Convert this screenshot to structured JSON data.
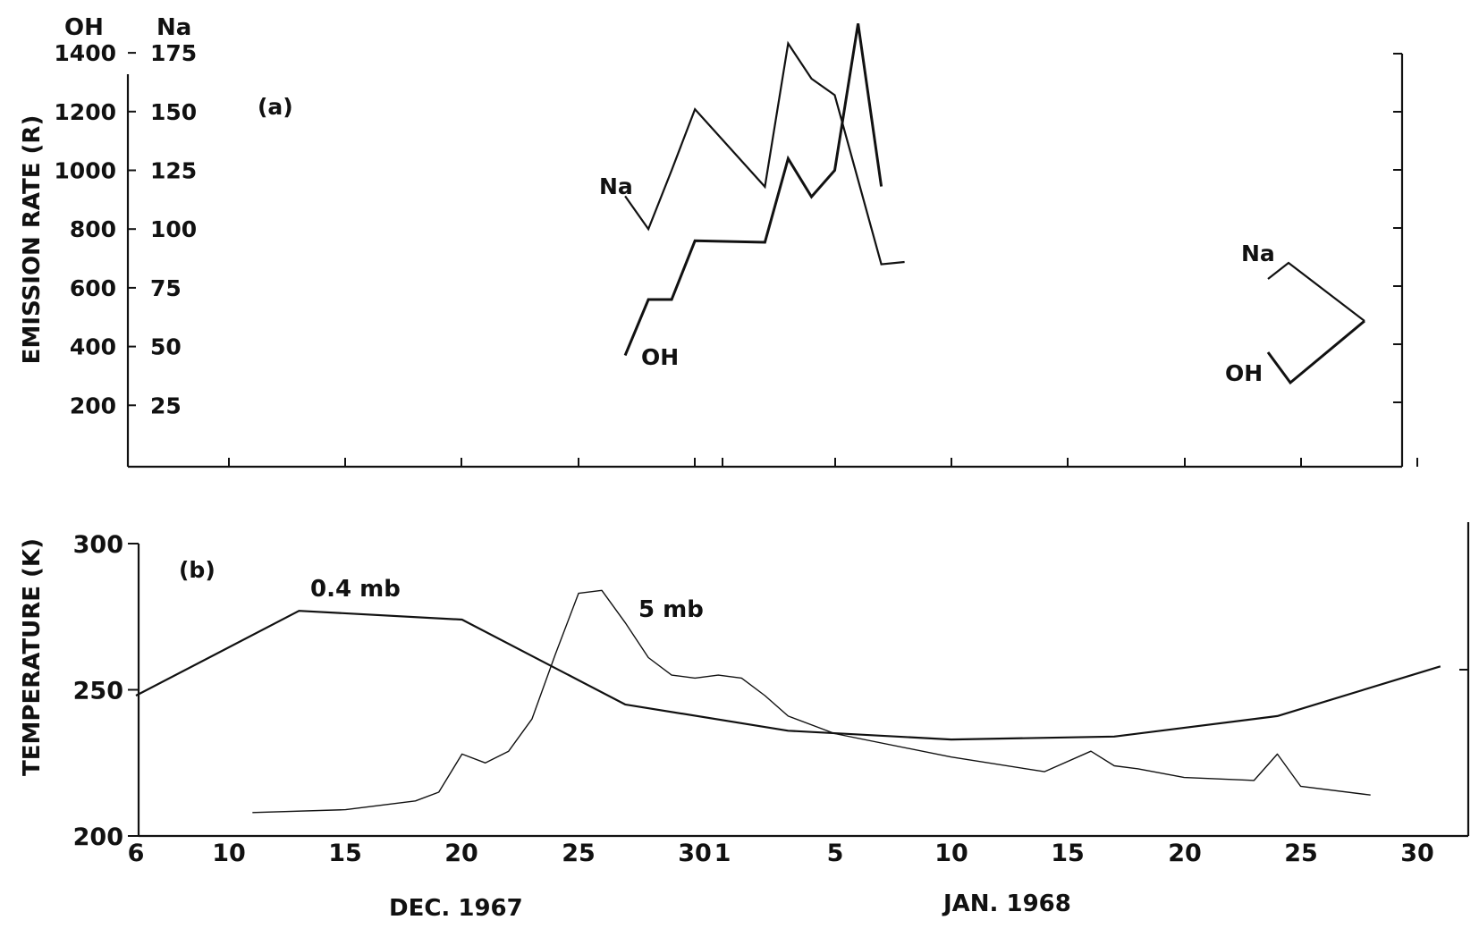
{
  "chart_data": [
    {
      "type": "line",
      "panel_label": "(a)",
      "ylabel": "EMISSION RATE (R)",
      "y_axis_headers": {
        "oh": "OH",
        "na": "Na"
      },
      "oh_ticks": [
        "1400",
        "1200",
        "1000",
        "800",
        "600",
        "400",
        "200"
      ],
      "na_ticks": [
        "175",
        "150",
        "125",
        "100",
        "75",
        "50",
        "25"
      ],
      "series": [
        {
          "name": "Na",
          "scale": "na",
          "x": [
            "1967-12-27",
            "1967-12-28",
            "1967-12-29",
            "1967-12-30",
            "1968-01-02",
            "1968-01-03",
            "1968-01-04",
            "1968-01-05",
            "1968-01-07",
            "1968-01-08"
          ],
          "y": [
            114,
            100,
            125,
            151,
            118,
            179,
            164,
            157,
            85,
            86
          ]
        },
        {
          "name": "OH",
          "scale": "oh",
          "x": [
            "1967-12-27",
            "1967-12-28",
            "1967-12-29",
            "1967-12-30",
            "1968-01-02",
            "1968-01-03",
            "1968-01-04",
            "1968-01-05",
            "1968-01-06",
            "1968-01-07"
          ],
          "y": [
            370,
            560,
            560,
            760,
            755,
            1040,
            910,
            1000,
            1500,
            945
          ]
        }
      ],
      "annotations": [
        {
          "text": "Na",
          "anchor": "Na"
        },
        {
          "text": "OH",
          "anchor": "OH"
        }
      ],
      "legend_key": {
        "na_label": "Na",
        "oh_label": "OH"
      }
    },
    {
      "type": "line",
      "panel_label": "(b)",
      "ylabel": "TEMPERATURE (K)",
      "y_ticks": [
        "300",
        "250",
        "200"
      ],
      "ylim": [
        200,
        300
      ],
      "series": [
        {
          "name": "0.4 mb",
          "x": [
            "1967-12-06",
            "1967-12-13",
            "1967-12-20",
            "1967-12-27",
            "1968-01-03",
            "1968-01-10",
            "1968-01-17",
            "1968-01-24",
            "1968-01-31"
          ],
          "y": [
            248,
            277,
            274,
            245,
            236,
            233,
            234,
            241,
            258
          ]
        },
        {
          "name": "5 mb",
          "x": [
            "1967-12-11",
            "1967-12-15",
            "1967-12-18",
            "1967-12-19",
            "1967-12-20",
            "1967-12-21",
            "1967-12-22",
            "1967-12-23",
            "1967-12-24",
            "1967-12-25",
            "1967-12-26",
            "1967-12-27",
            "1967-12-28",
            "1967-12-29",
            "1967-12-30",
            "1967-12-31",
            "1968-01-01",
            "1968-01-02",
            "1968-01-03",
            "1968-01-05",
            "1968-01-10",
            "1968-01-14",
            "1968-01-16",
            "1968-01-17",
            "1968-01-18",
            "1968-01-20",
            "1968-01-23",
            "1968-01-24",
            "1968-01-25",
            "1968-01-28"
          ],
          "y": [
            208,
            209,
            212,
            215,
            228,
            225,
            229,
            240,
            262,
            283,
            284,
            273,
            261,
            255,
            254,
            255,
            254,
            248,
            241,
            235,
            227,
            222,
            229,
            224,
            223,
            220,
            219,
            228,
            217,
            214
          ]
        }
      ],
      "annotations": [
        {
          "text": "0.4 mb"
        },
        {
          "text": "5 mb"
        }
      ]
    }
  ],
  "x_axis": {
    "tick_labels": [
      "6",
      "10",
      "15",
      "20",
      "25",
      "30",
      "1",
      "5",
      "10",
      "15",
      "20",
      "25",
      "30"
    ],
    "month_labels": [
      "DEC. 1967",
      "JAN. 1968"
    ]
  }
}
